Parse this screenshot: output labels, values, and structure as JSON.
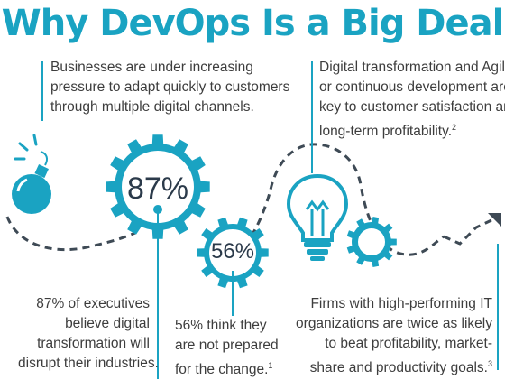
{
  "title": "Why DevOps Is a Big Deal",
  "stat_big": "87%",
  "stat_small": "56%",
  "text_pressure": [
    "Businesses are under increasing",
    "pressure to adapt quickly to customers",
    "through multiple digital channels."
  ],
  "text_transform": [
    "Digital transformation and Agile",
    "or continuous development are",
    "key to customer satisfaction and",
    "long-term profitability.",
    "2"
  ],
  "text_exec": [
    "87% of executives",
    "believe digital",
    "transformation will",
    "disrupt their industries."
  ],
  "text_prepared": [
    "56% think they",
    "are not prepared",
    "for the change.",
    "1"
  ],
  "text_firms": [
    "Firms with high-performing IT",
    "organizations are twice as likely",
    "to beat profitability, market-",
    "share and productivity goals.",
    "3"
  ],
  "colors": {
    "accent": "#1aa3c2",
    "dash": "#3e4a55",
    "text": "#3d3d3d"
  },
  "icons": [
    "bomb-icon",
    "gear-icon",
    "lightbulb-icon",
    "trend-arrow-icon"
  ]
}
